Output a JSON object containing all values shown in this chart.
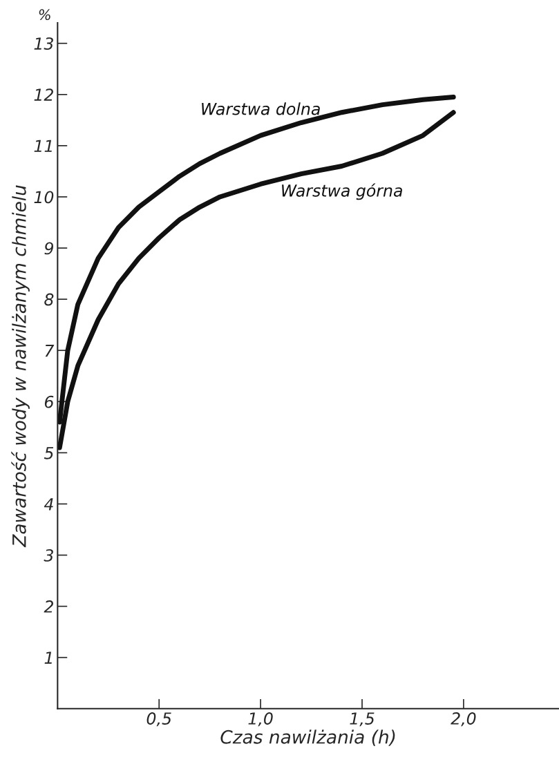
{
  "chart_data": {
    "type": "line",
    "xlabel": "Czas nawilżania (h)",
    "ylabel": "Zawartość wody w nawilżanym chmielu",
    "annotations": [
      "%"
    ],
    "xlim": [
      0,
      2.47
    ],
    "ylim": [
      0,
      13.4
    ],
    "xticks": [
      {
        "value": 0.5,
        "label": "0,5"
      },
      {
        "value": 1.0,
        "label": "1,0"
      },
      {
        "value": 1.5,
        "label": "1,5"
      },
      {
        "value": 2.0,
        "label": "2,0"
      }
    ],
    "yticks": [
      1,
      2,
      3,
      4,
      5,
      6,
      7,
      8,
      9,
      10,
      11,
      12,
      13
    ],
    "grid": false,
    "legend": false,
    "marker": "none",
    "line_style": "solid",
    "series": [
      {
        "name": "Warstwa dolna",
        "color": "#111111",
        "x": [
          0.01,
          0.05,
          0.1,
          0.2,
          0.3,
          0.4,
          0.5,
          0.6,
          0.7,
          0.8,
          1.0,
          1.2,
          1.4,
          1.6,
          1.8,
          1.95
        ],
        "values": [
          5.6,
          7.0,
          7.9,
          8.8,
          9.4,
          9.8,
          10.1,
          10.4,
          10.65,
          10.85,
          11.2,
          11.45,
          11.65,
          11.8,
          11.9,
          11.95
        ]
      },
      {
        "name": "Warstwa górna",
        "color": "#111111",
        "x": [
          0.01,
          0.05,
          0.1,
          0.2,
          0.3,
          0.4,
          0.5,
          0.6,
          0.7,
          0.8,
          1.0,
          1.2,
          1.4,
          1.6,
          1.8,
          1.95
        ],
        "values": [
          5.1,
          6.0,
          6.7,
          7.6,
          8.3,
          8.8,
          9.2,
          9.55,
          9.8,
          10.0,
          10.25,
          10.45,
          10.6,
          10.85,
          11.2,
          11.65
        ]
      }
    ]
  }
}
